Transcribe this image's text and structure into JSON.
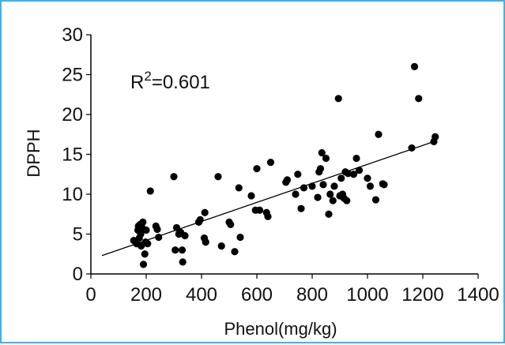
{
  "colors": {
    "frame_border": "#3fb1e6",
    "points": "#000000",
    "trendline": "#000000",
    "axis": "#000000"
  },
  "chart_data": {
    "type": "scatter",
    "xlabel": "Phenol(mg/kg)",
    "ylabel": "DPPH",
    "xlim": [
      0,
      1400
    ],
    "ylim": [
      0,
      30
    ],
    "xticks": [
      0,
      200,
      400,
      600,
      800,
      1000,
      1200,
      1400
    ],
    "yticks": [
      0,
      5,
      10,
      15,
      20,
      25,
      30
    ],
    "grid": false,
    "annotation": {
      "r2_label": "R",
      "r2_sup": "2",
      "r2_value": "=0.601"
    },
    "trendline": {
      "x": [
        40,
        1240
      ],
      "y": [
        2.3,
        16.6
      ]
    },
    "points": [
      {
        "x": 155,
        "y": 4.2
      },
      {
        "x": 165,
        "y": 3.8
      },
      {
        "x": 170,
        "y": 5.5
      },
      {
        "x": 172,
        "y": 6.0
      },
      {
        "x": 175,
        "y": 4.5
      },
      {
        "x": 178,
        "y": 6.2
      },
      {
        "x": 180,
        "y": 5.0
      },
      {
        "x": 182,
        "y": 3.5
      },
      {
        "x": 185,
        "y": 5.8
      },
      {
        "x": 188,
        "y": 6.5
      },
      {
        "x": 190,
        "y": 1.2
      },
      {
        "x": 195,
        "y": 2.5
      },
      {
        "x": 198,
        "y": 4.0
      },
      {
        "x": 200,
        "y": 5.5
      },
      {
        "x": 205,
        "y": 3.8
      },
      {
        "x": 215,
        "y": 10.4
      },
      {
        "x": 235,
        "y": 6.0
      },
      {
        "x": 240,
        "y": 5.6
      },
      {
        "x": 245,
        "y": 4.6
      },
      {
        "x": 300,
        "y": 12.2
      },
      {
        "x": 305,
        "y": 3.0
      },
      {
        "x": 310,
        "y": 5.8
      },
      {
        "x": 318,
        "y": 5.0
      },
      {
        "x": 325,
        "y": 5.2
      },
      {
        "x": 330,
        "y": 3.0
      },
      {
        "x": 332,
        "y": 1.5
      },
      {
        "x": 340,
        "y": 4.8
      },
      {
        "x": 390,
        "y": 6.5
      },
      {
        "x": 395,
        "y": 6.8
      },
      {
        "x": 410,
        "y": 4.5
      },
      {
        "x": 412,
        "y": 7.7
      },
      {
        "x": 415,
        "y": 4.0
      },
      {
        "x": 460,
        "y": 12.2
      },
      {
        "x": 472,
        "y": 3.5
      },
      {
        "x": 500,
        "y": 6.5
      },
      {
        "x": 505,
        "y": 6.2
      },
      {
        "x": 520,
        "y": 2.8
      },
      {
        "x": 535,
        "y": 10.8
      },
      {
        "x": 540,
        "y": 4.6
      },
      {
        "x": 580,
        "y": 9.8
      },
      {
        "x": 595,
        "y": 8.0
      },
      {
        "x": 600,
        "y": 13.2
      },
      {
        "x": 610,
        "y": 8.0
      },
      {
        "x": 635,
        "y": 7.7
      },
      {
        "x": 640,
        "y": 7.2
      },
      {
        "x": 650,
        "y": 14.0
      },
      {
        "x": 705,
        "y": 11.5
      },
      {
        "x": 710,
        "y": 11.8
      },
      {
        "x": 740,
        "y": 10.0
      },
      {
        "x": 748,
        "y": 12.5
      },
      {
        "x": 760,
        "y": 8.2
      },
      {
        "x": 770,
        "y": 10.8
      },
      {
        "x": 800,
        "y": 11.0
      },
      {
        "x": 820,
        "y": 9.6
      },
      {
        "x": 825,
        "y": 12.8
      },
      {
        "x": 830,
        "y": 13.2
      },
      {
        "x": 835,
        "y": 15.2
      },
      {
        "x": 840,
        "y": 11.2
      },
      {
        "x": 850,
        "y": 14.5
      },
      {
        "x": 860,
        "y": 7.5
      },
      {
        "x": 865,
        "y": 10.0
      },
      {
        "x": 875,
        "y": 9.2
      },
      {
        "x": 880,
        "y": 11.0
      },
      {
        "x": 895,
        "y": 22.0
      },
      {
        "x": 900,
        "y": 9.8
      },
      {
        "x": 905,
        "y": 12.0
      },
      {
        "x": 910,
        "y": 10.0
      },
      {
        "x": 915,
        "y": 9.5
      },
      {
        "x": 920,
        "y": 12.8
      },
      {
        "x": 925,
        "y": 9.2
      },
      {
        "x": 930,
        "y": 12.6
      },
      {
        "x": 950,
        "y": 12.5
      },
      {
        "x": 960,
        "y": 14.5
      },
      {
        "x": 970,
        "y": 13.0
      },
      {
        "x": 1000,
        "y": 12.0
      },
      {
        "x": 1010,
        "y": 11.0
      },
      {
        "x": 1030,
        "y": 9.3
      },
      {
        "x": 1040,
        "y": 17.5
      },
      {
        "x": 1055,
        "y": 11.3
      },
      {
        "x": 1060,
        "y": 11.2
      },
      {
        "x": 1160,
        "y": 15.8
      },
      {
        "x": 1170,
        "y": 26.0
      },
      {
        "x": 1185,
        "y": 22.0
      },
      {
        "x": 1240,
        "y": 16.6
      },
      {
        "x": 1245,
        "y": 17.2
      }
    ]
  }
}
